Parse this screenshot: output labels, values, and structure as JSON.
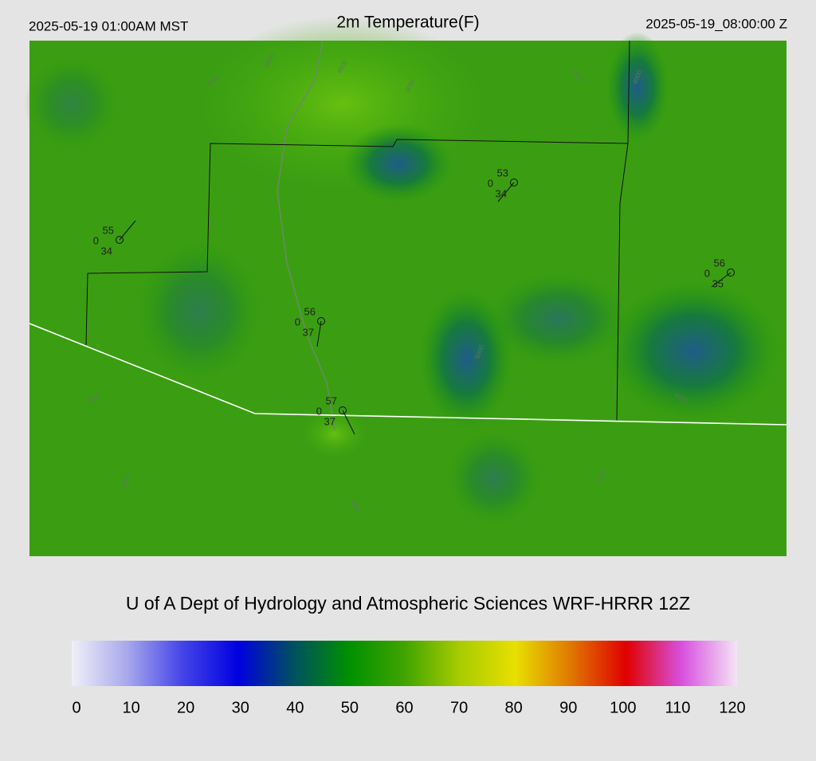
{
  "header": {
    "left": "2025-05-19 01:00AM MST",
    "title": "2m Temperature(F)",
    "right": "2025-05-19_08:00:00 Z"
  },
  "stations": [
    {
      "temperature": 55,
      "wind": 0,
      "dewpoint": 34
    },
    {
      "temperature": 53,
      "wind": 0,
      "dewpoint": 34
    },
    {
      "temperature": 56,
      "wind": 0,
      "dewpoint": 35
    },
    {
      "temperature": 56,
      "wind": 0,
      "dewpoint": 37
    },
    {
      "temperature": 57,
      "wind": 0,
      "dewpoint": 37
    }
  ],
  "contour_labels": [
    "3500",
    "4000",
    "4500",
    "3000",
    "4000",
    "6000",
    "5000",
    "4500",
    "5500",
    "3500",
    "5000",
    "4500"
  ],
  "caption": "U of A Dept of Hydrology and Atmospheric Sciences WRF-HRRR 12Z",
  "colorbar": {
    "range": [
      0,
      120
    ],
    "ticks": [
      0,
      10,
      20,
      30,
      40,
      50,
      60,
      70,
      80,
      90,
      100,
      110,
      120
    ],
    "colors": [
      "#f0f0f8",
      "#a8a8ec",
      "#4444e8",
      "#0000e0",
      "#005060",
      "#009000",
      "#40a400",
      "#a8cc00",
      "#e8e000",
      "#e07800",
      "#e00000",
      "#d850e0",
      "#f4e4f4"
    ]
  }
}
